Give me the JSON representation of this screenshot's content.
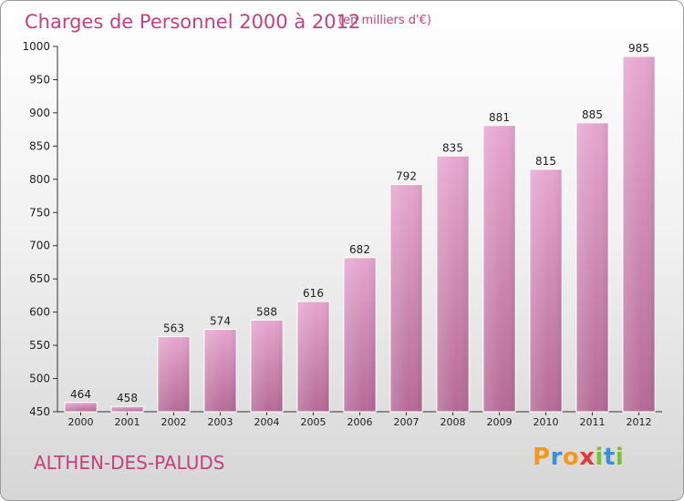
{
  "chart_data": {
    "type": "bar",
    "title": "Charges de Personnel 2000 à 2012",
    "subtitle": "(en milliers d'€)",
    "categories": [
      "2000",
      "2001",
      "2002",
      "2003",
      "2004",
      "2005",
      "2006",
      "2007",
      "2008",
      "2009",
      "2010",
      "2011",
      "2012"
    ],
    "values": [
      464,
      458,
      563,
      574,
      588,
      616,
      682,
      792,
      835,
      881,
      815,
      885,
      985
    ],
    "ylim": [
      450,
      1000
    ],
    "yticks": [
      450,
      500,
      550,
      600,
      650,
      700,
      750,
      800,
      850,
      900,
      950,
      1000
    ],
    "xlabel": "",
    "ylabel": "",
    "grid": false,
    "bar_color": "#d08ab5",
    "title_color": "#c5407e"
  },
  "location": "ALTHEN-DES-PALUDS",
  "logo": {
    "text": "Proxiti",
    "letters": [
      {
        "char": "P",
        "color": "#f39a1e"
      },
      {
        "char": "r",
        "color": "#3a8fd6"
      },
      {
        "char": "o",
        "color": "#f39a1e"
      },
      {
        "char": "x",
        "color": "#e23a3a"
      },
      {
        "char": "i",
        "color": "#7cbf2f"
      },
      {
        "char": "t",
        "color": "#3a8fd6"
      },
      {
        "char": "i",
        "color": "#7cbf2f"
      }
    ]
  }
}
